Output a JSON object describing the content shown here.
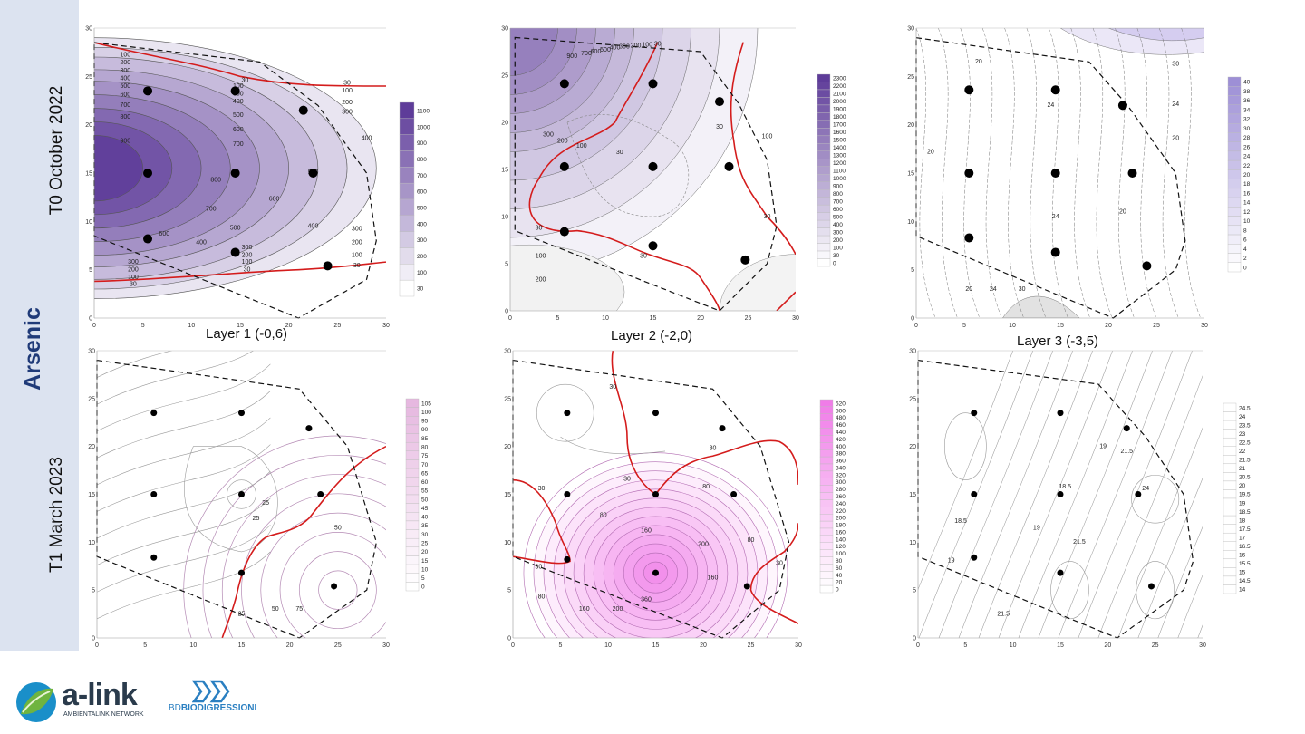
{
  "analyte": "Arsenic",
  "rows": [
    {
      "label": "T0  October 2022"
    },
    {
      "label": "T1  March 2023"
    }
  ],
  "layer_labels": [
    "Layer 1 (-0,6)",
    "Layer 2 (-2,0)",
    "Layer 3 (-3,5)"
  ],
  "logos": {
    "alink_name": "a-link",
    "alink_sub": "AMBIENTALINK NETWORK",
    "bd_prefix": "BD",
    "bd_name": "BIODIGRESSIONI"
  },
  "chart_data": [
    {
      "id": "t0-l1",
      "type": "contour",
      "palette": "purple",
      "xlim": [
        0,
        30
      ],
      "ylim": [
        0,
        30
      ],
      "xticks": [
        0,
        5,
        10,
        15,
        20,
        25,
        30
      ],
      "yticks": [
        0,
        5,
        10,
        15,
        20,
        25,
        30
      ],
      "boundary": [
        [
          0,
          28.5
        ],
        [
          17,
          26.5
        ],
        [
          23,
          22
        ],
        [
          28,
          15
        ],
        [
          29,
          8
        ],
        [
          28,
          4
        ],
        [
          21,
          0
        ],
        [
          0,
          8.5
        ]
      ],
      "wells": [
        [
          5.5,
          23.5
        ],
        [
          14.5,
          23.5
        ],
        [
          21.5,
          21.5
        ],
        [
          5.5,
          15
        ],
        [
          14.5,
          15
        ],
        [
          22.5,
          15
        ],
        [
          5.5,
          8.2
        ],
        [
          14.5,
          6.8
        ],
        [
          24,
          5.4
        ]
      ],
      "contour_labels": [
        {
          "x": 3.2,
          "y": 27.2,
          "t": "100"
        },
        {
          "x": 3.2,
          "y": 26.4,
          "t": "200"
        },
        {
          "x": 3.2,
          "y": 25.6,
          "t": "300"
        },
        {
          "x": 3.2,
          "y": 24.8,
          "t": "400"
        },
        {
          "x": 3.2,
          "y": 24,
          "t": "500"
        },
        {
          "x": 3.2,
          "y": 23.1,
          "t": "600"
        },
        {
          "x": 3.2,
          "y": 22,
          "t": "700"
        },
        {
          "x": 3.2,
          "y": 20.8,
          "t": "800"
        },
        {
          "x": 3.2,
          "y": 18.3,
          "t": "900"
        },
        {
          "x": 15.5,
          "y": 24.6,
          "t": "30"
        },
        {
          "x": 14.8,
          "y": 24.0,
          "t": "100"
        },
        {
          "x": 14.8,
          "y": 23.2,
          "t": "300"
        },
        {
          "x": 14.8,
          "y": 22.4,
          "t": "400"
        },
        {
          "x": 14.8,
          "y": 21,
          "t": "500"
        },
        {
          "x": 14.8,
          "y": 19.5,
          "t": "600"
        },
        {
          "x": 14.8,
          "y": 18,
          "t": "700"
        },
        {
          "x": 26,
          "y": 24.3,
          "t": "30"
        },
        {
          "x": 26,
          "y": 23.5,
          "t": "100"
        },
        {
          "x": 26,
          "y": 22.3,
          "t": "200"
        },
        {
          "x": 26,
          "y": 21.3,
          "t": "300"
        },
        {
          "x": 28,
          "y": 18.6,
          "t": "400"
        },
        {
          "x": 22.5,
          "y": 15.1,
          "t": "900"
        },
        {
          "x": 12.5,
          "y": 14.3,
          "t": "800"
        },
        {
          "x": 18.5,
          "y": 12.3,
          "t": "600"
        },
        {
          "x": 12,
          "y": 11.3,
          "t": "700"
        },
        {
          "x": 14.5,
          "y": 9.3,
          "t": "500"
        },
        {
          "x": 7.2,
          "y": 8.7,
          "t": "600"
        },
        {
          "x": 11,
          "y": 7.8,
          "t": "400"
        },
        {
          "x": 22.5,
          "y": 9.5,
          "t": "400"
        },
        {
          "x": 27,
          "y": 9.2,
          "t": "300"
        },
        {
          "x": 27,
          "y": 7.8,
          "t": "200"
        },
        {
          "x": 27,
          "y": 6.5,
          "t": "100"
        },
        {
          "x": 27,
          "y": 5.4,
          "t": "30"
        },
        {
          "x": 15.7,
          "y": 7.3,
          "t": "300"
        },
        {
          "x": 15.7,
          "y": 6.5,
          "t": "200"
        },
        {
          "x": 15.7,
          "y": 5.8,
          "t": "100"
        },
        {
          "x": 15.7,
          "y": 5.0,
          "t": "30"
        },
        {
          "x": 4,
          "y": 5.8,
          "t": "300"
        },
        {
          "x": 4,
          "y": 5.0,
          "t": "200"
        },
        {
          "x": 4,
          "y": 4.2,
          "t": "100"
        },
        {
          "x": 4,
          "y": 3.5,
          "t": "30"
        }
      ],
      "legend": {
        "labels": [
          "1100",
          "1000",
          "900",
          "800",
          "700",
          "600",
          "500",
          "400",
          "300",
          "200",
          "100",
          "30"
        ]
      }
    },
    {
      "id": "t0-l2",
      "type": "contour",
      "palette": "purple",
      "xlim": [
        0,
        30
      ],
      "ylim": [
        0,
        30
      ],
      "xticks": [
        0,
        5,
        10,
        15,
        20,
        25,
        30
      ],
      "yticks": [
        0,
        5,
        10,
        15,
        20,
        25,
        30
      ],
      "boundary": [
        [
          0.5,
          29
        ],
        [
          20,
          27.5
        ],
        [
          24,
          22
        ],
        [
          27,
          16
        ],
        [
          28,
          9
        ],
        [
          27,
          5
        ],
        [
          22,
          0
        ],
        [
          0.5,
          8.5
        ]
      ],
      "wells": [
        [
          5.7,
          24.1
        ],
        [
          15,
          24.1
        ],
        [
          22,
          22.2
        ],
        [
          5.7,
          15.3
        ],
        [
          15,
          15.3
        ],
        [
          23,
          15.3
        ],
        [
          5.7,
          8.4
        ],
        [
          15,
          6.9
        ],
        [
          24.7,
          5.4
        ]
      ],
      "contour_labels": [
        {
          "x": 6.5,
          "y": 27,
          "t": "900"
        },
        {
          "x": 8,
          "y": 27.3,
          "t": "700"
        },
        {
          "x": 9,
          "y": 27.5,
          "t": "600"
        },
        {
          "x": 10,
          "y": 27.7,
          "t": "500"
        },
        {
          "x": 11,
          "y": 27.9,
          "t": "400"
        },
        {
          "x": 12,
          "y": 28,
          "t": "300"
        },
        {
          "x": 13.2,
          "y": 28.1,
          "t": "200"
        },
        {
          "x": 14.4,
          "y": 28.2,
          "t": "100"
        },
        {
          "x": 15.5,
          "y": 28.3,
          "t": "30"
        },
        {
          "x": 4,
          "y": 18.7,
          "t": "300"
        },
        {
          "x": 5.5,
          "y": 18,
          "t": "200"
        },
        {
          "x": 7.5,
          "y": 17.5,
          "t": "100"
        },
        {
          "x": 11.5,
          "y": 16.8,
          "t": "30"
        },
        {
          "x": 22,
          "y": 19.5,
          "t": "30"
        },
        {
          "x": 27,
          "y": 18.5,
          "t": "100"
        },
        {
          "x": 3,
          "y": 8.8,
          "t": "30"
        },
        {
          "x": 3.2,
          "y": 5.8,
          "t": "100"
        },
        {
          "x": 3.2,
          "y": 3.3,
          "t": "200"
        },
        {
          "x": 14,
          "y": 5.8,
          "t": "30"
        },
        {
          "x": 27,
          "y": 10,
          "t": "30"
        }
      ],
      "legend": {
        "labels": [
          "2300",
          "2200",
          "2100",
          "2000",
          "1900",
          "1800",
          "1700",
          "1600",
          "1500",
          "1400",
          "1300",
          "1200",
          "1100",
          "1000",
          "900",
          "800",
          "700",
          "600",
          "500",
          "400",
          "300",
          "200",
          "100",
          "30",
          "0"
        ]
      }
    },
    {
      "id": "t0-l3",
      "type": "contour",
      "palette": "lavender",
      "xlim": [
        0,
        30
      ],
      "ylim": [
        0,
        30
      ],
      "xticks": [
        0,
        5,
        10,
        15,
        20,
        25,
        30
      ],
      "yticks": [
        0,
        5,
        10,
        15,
        20,
        25,
        30
      ],
      "boundary": [
        [
          0,
          29
        ],
        [
          18,
          26.5
        ],
        [
          22,
          22
        ],
        [
          27,
          15
        ],
        [
          28,
          8
        ],
        [
          27,
          5
        ],
        [
          20.5,
          0
        ],
        [
          0,
          8.5
        ]
      ],
      "wells": [
        [
          5.5,
          23.6
        ],
        [
          14.5,
          23.6
        ],
        [
          21.5,
          22
        ],
        [
          5.5,
          15
        ],
        [
          14.5,
          15
        ],
        [
          22.5,
          15
        ],
        [
          5.5,
          8.3
        ],
        [
          14.5,
          6.8
        ],
        [
          24,
          5.4
        ]
      ],
      "contour_labels": [
        {
          "x": 6.5,
          "y": 26.5,
          "t": "20"
        },
        {
          "x": 27,
          "y": 26.3,
          "t": "30"
        },
        {
          "x": 14,
          "y": 22,
          "t": "24"
        },
        {
          "x": 27,
          "y": 22.1,
          "t": "24"
        },
        {
          "x": 1.5,
          "y": 17.2,
          "t": "20"
        },
        {
          "x": 27,
          "y": 18.6,
          "t": "20"
        },
        {
          "x": 14.5,
          "y": 10.5,
          "t": "24"
        },
        {
          "x": 21.5,
          "y": 11,
          "t": "20"
        },
        {
          "x": 5.5,
          "y": 3,
          "t": "20"
        },
        {
          "x": 8,
          "y": 3,
          "t": "24"
        },
        {
          "x": 11,
          "y": 3,
          "t": "30"
        }
      ],
      "legend": {
        "labels": [
          "40",
          "38",
          "36",
          "34",
          "32",
          "30",
          "28",
          "26",
          "24",
          "22",
          "20",
          "18",
          "16",
          "14",
          "12",
          "10",
          "8",
          "6",
          "4",
          "2",
          "0"
        ]
      }
    },
    {
      "id": "t1-l1",
      "type": "contour",
      "palette": "pink-light",
      "xlim": [
        0,
        30
      ],
      "ylim": [
        0,
        30
      ],
      "xticks": [
        0,
        5,
        10,
        15,
        20,
        25,
        30
      ],
      "yticks": [
        0,
        5,
        10,
        15,
        20,
        25,
        30
      ],
      "boundary": [
        [
          0,
          29
        ],
        [
          21,
          26
        ],
        [
          26,
          20
        ],
        [
          29,
          10
        ],
        [
          28,
          5
        ],
        [
          21,
          0
        ],
        [
          0,
          8.5
        ]
      ],
      "wells": [
        [
          5.9,
          23.5
        ],
        [
          15,
          23.5
        ],
        [
          22,
          21.9
        ],
        [
          5.9,
          15
        ],
        [
          15,
          15
        ],
        [
          23.2,
          15
        ],
        [
          5.9,
          8.4
        ],
        [
          15,
          6.8
        ],
        [
          24.6,
          5.4
        ]
      ],
      "contour_labels": [
        {
          "x": 17.5,
          "y": 14.1,
          "t": "25"
        },
        {
          "x": 16.5,
          "y": 12.5,
          "t": "25"
        },
        {
          "x": 25,
          "y": 11.5,
          "t": "50"
        },
        {
          "x": 18.5,
          "y": 3,
          "t": "50"
        },
        {
          "x": 21,
          "y": 3,
          "t": "75"
        },
        {
          "x": 15,
          "y": 2.5,
          "t": "25"
        }
      ],
      "legend": {
        "labels": [
          "105",
          "100",
          "95",
          "90",
          "85",
          "80",
          "75",
          "70",
          "65",
          "60",
          "55",
          "50",
          "45",
          "40",
          "35",
          "30",
          "25",
          "20",
          "15",
          "10",
          "5",
          "0"
        ]
      }
    },
    {
      "id": "t1-l2",
      "type": "contour",
      "palette": "magenta",
      "xlim": [
        0,
        30
      ],
      "ylim": [
        0,
        30
      ],
      "xticks": [
        0,
        5,
        10,
        15,
        20,
        25,
        30
      ],
      "yticks": [
        0,
        5,
        10,
        15,
        20,
        25,
        30
      ],
      "boundary": [
        [
          0,
          29
        ],
        [
          21,
          26
        ],
        [
          26,
          20
        ],
        [
          29,
          10
        ],
        [
          28,
          5
        ],
        [
          22,
          0
        ],
        [
          0,
          8.5
        ]
      ],
      "wells": [
        [
          5.7,
          23.5
        ],
        [
          15,
          23.5
        ],
        [
          22,
          21.9
        ],
        [
          5.7,
          15
        ],
        [
          15,
          15
        ],
        [
          23.2,
          15
        ],
        [
          5.7,
          8.2
        ],
        [
          15,
          6.8
        ],
        [
          24.6,
          5.4
        ]
      ],
      "contour_labels": [
        {
          "x": 10.5,
          "y": 26.2,
          "t": "30"
        },
        {
          "x": 3,
          "y": 15.6,
          "t": "30"
        },
        {
          "x": 12,
          "y": 16.6,
          "t": "30"
        },
        {
          "x": 21,
          "y": 19.8,
          "t": "30"
        },
        {
          "x": 20.3,
          "y": 15.8,
          "t": "80"
        },
        {
          "x": 9.5,
          "y": 12.8,
          "t": "80"
        },
        {
          "x": 14,
          "y": 11.2,
          "t": "160"
        },
        {
          "x": 20,
          "y": 9.8,
          "t": "200"
        },
        {
          "x": 25,
          "y": 10.2,
          "t": "80"
        },
        {
          "x": 28,
          "y": 7.8,
          "t": "30"
        },
        {
          "x": 2.7,
          "y": 7.4,
          "t": "30"
        },
        {
          "x": 3,
          "y": 4.3,
          "t": "80"
        },
        {
          "x": 7.5,
          "y": 3,
          "t": "160"
        },
        {
          "x": 11,
          "y": 3,
          "t": "200"
        },
        {
          "x": 14,
          "y": 4,
          "t": "360"
        },
        {
          "x": 21,
          "y": 6.3,
          "t": "160"
        }
      ],
      "legend": {
        "labels": [
          "520",
          "500",
          "480",
          "460",
          "440",
          "420",
          "400",
          "380",
          "360",
          "340",
          "320",
          "300",
          "280",
          "260",
          "240",
          "220",
          "200",
          "180",
          "160",
          "140",
          "120",
          "100",
          "80",
          "60",
          "40",
          "20",
          "0"
        ]
      }
    },
    {
      "id": "t1-l3",
      "type": "contour",
      "palette": "white",
      "xlim": [
        0,
        30
      ],
      "ylim": [
        0,
        30
      ],
      "xticks": [
        0,
        5,
        10,
        15,
        20,
        25,
        30
      ],
      "yticks": [
        0,
        5,
        10,
        15,
        20,
        25,
        30
      ],
      "boundary": [
        [
          0,
          29
        ],
        [
          19,
          26.5
        ],
        [
          24,
          21
        ],
        [
          28,
          15
        ],
        [
          29,
          8
        ],
        [
          28,
          5
        ],
        [
          21,
          0
        ],
        [
          0,
          8.5
        ]
      ],
      "wells": [
        [
          5.9,
          23.5
        ],
        [
          15,
          23.5
        ],
        [
          22,
          21.9
        ],
        [
          5.9,
          15
        ],
        [
          15,
          15
        ],
        [
          23.2,
          15
        ],
        [
          5.9,
          8.4
        ],
        [
          15,
          6.8
        ],
        [
          24.6,
          5.4
        ]
      ],
      "contour_labels": [
        {
          "x": 19.5,
          "y": 20,
          "t": "19"
        },
        {
          "x": 22,
          "y": 19.5,
          "t": "21.5"
        },
        {
          "x": 15.5,
          "y": 15.8,
          "t": "18.5"
        },
        {
          "x": 24,
          "y": 15.6,
          "t": "24"
        },
        {
          "x": 4.5,
          "y": 12.2,
          "t": "18.5"
        },
        {
          "x": 12.5,
          "y": 11.5,
          "t": "19"
        },
        {
          "x": 17,
          "y": 10,
          "t": "21.5"
        },
        {
          "x": 3.5,
          "y": 8.1,
          "t": "19"
        },
        {
          "x": 9,
          "y": 2.5,
          "t": "21.5"
        }
      ],
      "legend": {
        "labels": [
          "24.5",
          "24",
          "23.5",
          "23",
          "22.5",
          "22",
          "21.5",
          "21",
          "20.5",
          "20",
          "19.5",
          "19",
          "18.5",
          "18",
          "17.5",
          "17",
          "16.5",
          "16",
          "15.5",
          "15",
          "14.5",
          "14"
        ]
      }
    }
  ]
}
